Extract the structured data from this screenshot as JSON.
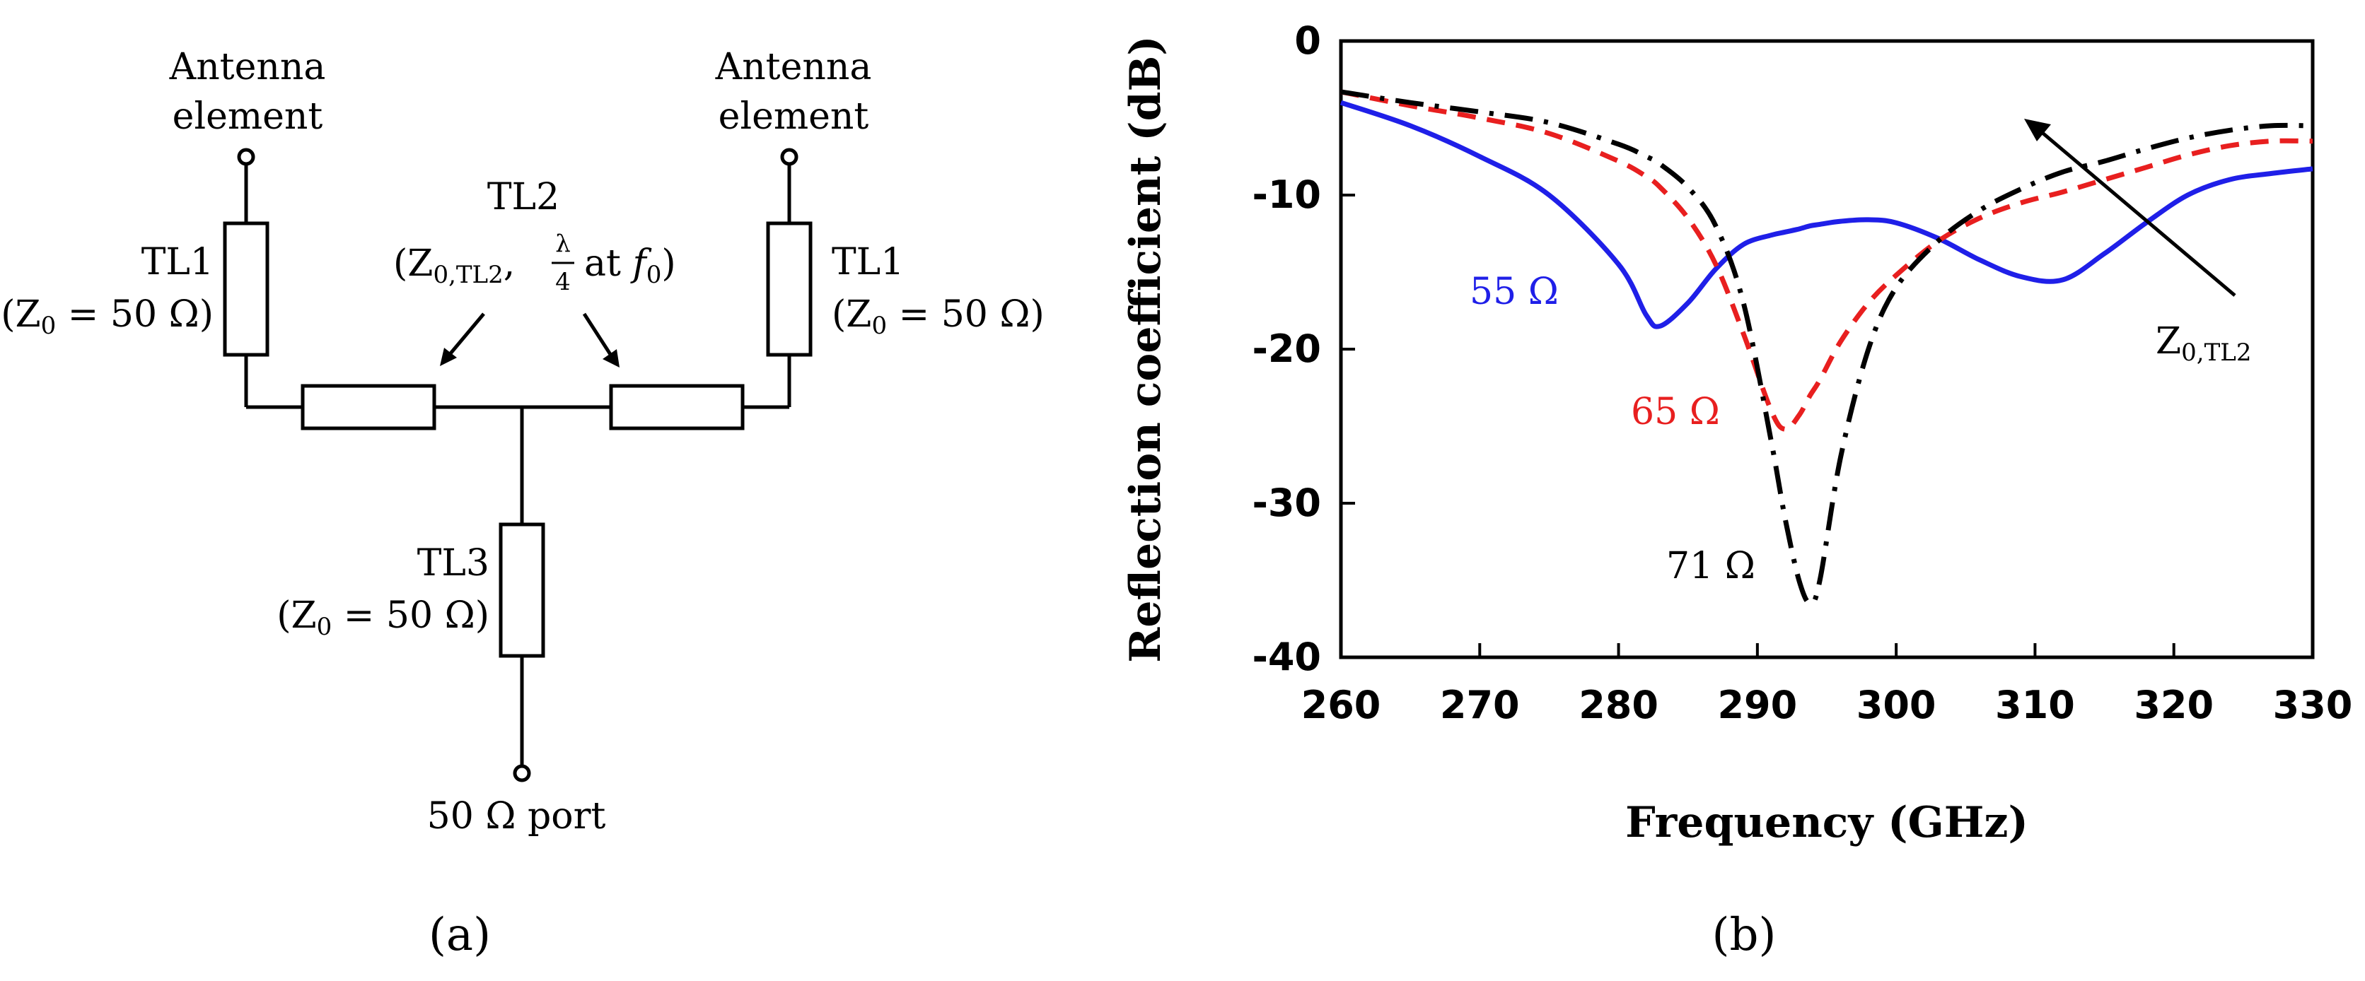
{
  "panel_a": {
    "label": "(a)",
    "antenna_left": {
      "line1": "Antenna",
      "line2": "element"
    },
    "antenna_right": {
      "line1": "Antenna",
      "line2": "element"
    },
    "tl1_left": {
      "name": "TL1",
      "z0": "Z",
      "z0_sub": "0",
      "z0_value": " = 50 Ω)"
    },
    "tl1_right": {
      "name": "TL1",
      "z0": "Z",
      "z0_sub": "0",
      "z0_value": " = 50 Ω)"
    },
    "tl2": {
      "name": "TL2",
      "z0": "Z",
      "z0_sub": "0,TL2",
      "frac_num": "λ",
      "frac_den": "4",
      "at": "at",
      "f": "f",
      "f_sub": "0"
    },
    "tl3": {
      "name": "TL3",
      "z0": "Z",
      "z0_sub": "0",
      "z0_value": " = 50 Ω)"
    },
    "port": "50 Ω port"
  },
  "panel_b": {
    "label": "(b)",
    "arrow_label": {
      "main": "Z",
      "sub": "0,TL2"
    }
  },
  "chart_data": {
    "type": "line",
    "title": "",
    "xlabel": "Frequency (GHz)",
    "ylabel": "Reflection coefficient (dB)",
    "xlim": [
      260,
      330
    ],
    "ylim": [
      -40,
      0
    ],
    "xticks": [
      260,
      270,
      280,
      290,
      300,
      310,
      320,
      330
    ],
    "yticks": [
      0,
      -10,
      -20,
      -30,
      -40
    ],
    "x": [
      260,
      265,
      270,
      275,
      280,
      282,
      283,
      285,
      287,
      289,
      291,
      292,
      293,
      293.8,
      294.5,
      296,
      298,
      300,
      303,
      306,
      309,
      312,
      315,
      318,
      321,
      324,
      327,
      330
    ],
    "series": [
      {
        "name": "55 Ω",
        "color": "#1f1fe8",
        "dash": "solid",
        "values": [
          -4,
          -5.5,
          -7.5,
          -10,
          -14.5,
          -17.8,
          -18.5,
          -17,
          -14.8,
          -13.2,
          -12.6,
          -12.4,
          -12.2,
          -12.0,
          -11.9,
          -11.7,
          -11.6,
          -11.8,
          -12.8,
          -14.2,
          -15.3,
          -15.5,
          -13.8,
          -11.8,
          -10,
          -9,
          -8.6,
          -8.3
        ]
      },
      {
        "name": "65 Ω",
        "color": "#e81f1f",
        "dash": "dashed",
        "values": [
          -3.3,
          -4.2,
          -5.0,
          -6.0,
          -7.8,
          -8.8,
          -9.5,
          -11.5,
          -14.5,
          -19,
          -24,
          -25.2,
          -24.3,
          -23.0,
          -22,
          -19.5,
          -17,
          -15.2,
          -13,
          -11.5,
          -10.5,
          -9.8,
          -9,
          -8.2,
          -7.4,
          -6.8,
          -6.5,
          -6.5
        ]
      },
      {
        "name": "71 Ω",
        "color": "#000000",
        "dash": "dashdot",
        "values": [
          -3.3,
          -4.0,
          -4.6,
          -5.3,
          -6.7,
          -7.5,
          -8,
          -9.5,
          -12,
          -17,
          -26,
          -31,
          -35,
          -36.5,
          -35,
          -27,
          -20,
          -16,
          -13,
          -11,
          -9.6,
          -8.5,
          -7.8,
          -7.0,
          -6.3,
          -5.8,
          -5.5,
          -5.5
        ]
      }
    ],
    "annotations": [
      {
        "text": "55 Ω",
        "color": "#1f1fe8"
      },
      {
        "text": "65 Ω",
        "color": "#e81f1f"
      },
      {
        "text": "71 Ω",
        "color": "#000000"
      }
    ],
    "grid": false,
    "legend": "none"
  }
}
